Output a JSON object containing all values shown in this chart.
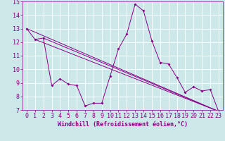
{
  "xlabel": "Windchill (Refroidissement éolien,°C)",
  "bg_color": "#cce8e8",
  "line_color": "#880088",
  "xlim": [
    -0.5,
    23.5
  ],
  "ylim": [
    7,
    15
  ],
  "yticks": [
    7,
    8,
    9,
    10,
    11,
    12,
    13,
    14,
    15
  ],
  "xticks": [
    0,
    1,
    2,
    3,
    4,
    5,
    6,
    7,
    8,
    9,
    10,
    11,
    12,
    13,
    14,
    15,
    16,
    17,
    18,
    19,
    20,
    21,
    22,
    23
  ],
  "series1_x": [
    0,
    1,
    2,
    3,
    4,
    5,
    6,
    7,
    8,
    9,
    10,
    11,
    12,
    13,
    14,
    15,
    16,
    17,
    18,
    19,
    20,
    21,
    22,
    23
  ],
  "series1_y": [
    13.0,
    12.2,
    12.3,
    8.8,
    9.3,
    8.9,
    8.8,
    7.3,
    7.5,
    7.5,
    9.5,
    11.5,
    12.6,
    14.8,
    14.3,
    12.1,
    10.5,
    10.4,
    9.4,
    8.3,
    8.7,
    8.4,
    8.5,
    6.9
  ],
  "series2_x": [
    0,
    23
  ],
  "series2_y": [
    13.0,
    6.9
  ],
  "series3_x": [
    1,
    23
  ],
  "series3_y": [
    12.2,
    6.9
  ],
  "series4_x": [
    2,
    23
  ],
  "series4_y": [
    12.3,
    6.9
  ],
  "tick_fontsize": 6,
  "xlabel_fontsize": 6
}
